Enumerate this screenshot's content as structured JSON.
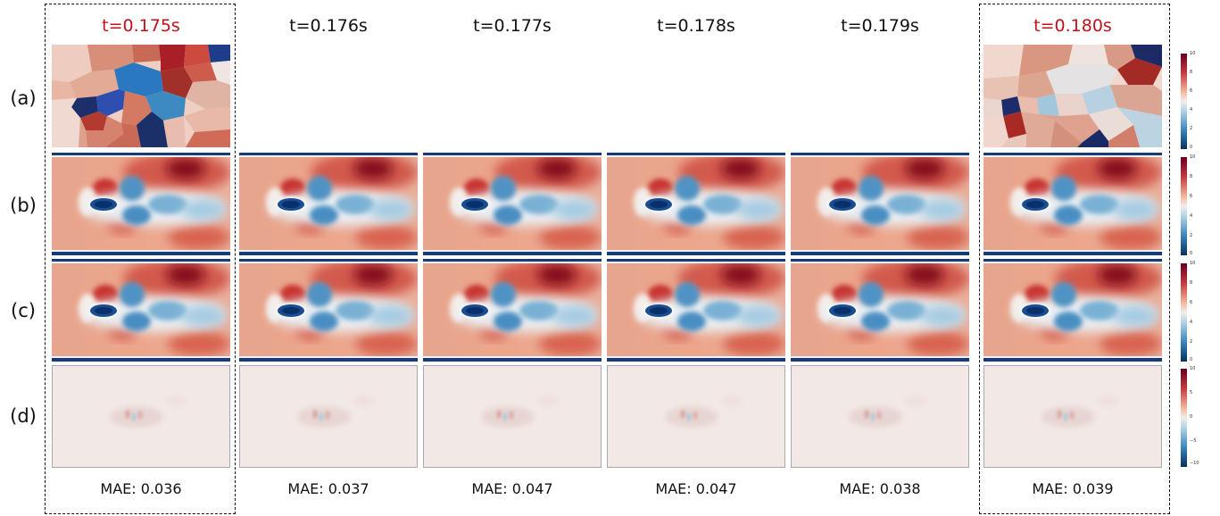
{
  "columns": [
    {
      "time": "t=0.175s",
      "highlighted": true,
      "mae": "MAE: 0.036",
      "has_input": true
    },
    {
      "time": "t=0.176s",
      "highlighted": false,
      "mae": "MAE: 0.037",
      "has_input": false
    },
    {
      "time": "t=0.177s",
      "highlighted": false,
      "mae": "MAE: 0.047",
      "has_input": false
    },
    {
      "time": "t=0.178s",
      "highlighted": false,
      "mae": "MAE: 0.047",
      "has_input": false
    },
    {
      "time": "t=0.179s",
      "highlighted": false,
      "mae": "MAE: 0.038",
      "has_input": false
    },
    {
      "time": "t=0.180s",
      "highlighted": true,
      "mae": "MAE: 0.039",
      "has_input": true
    }
  ],
  "rows": [
    "(a)",
    "(b)",
    "(c)",
    "(d)"
  ],
  "colorbars": [
    {
      "ticks": [
        "10",
        "8",
        "6",
        "4",
        "2",
        "0"
      ]
    },
    {
      "ticks": [
        "10",
        "8",
        "6",
        "4",
        "2",
        "0"
      ]
    },
    {
      "ticks": [
        "10",
        "8",
        "6",
        "4",
        "2",
        "0"
      ]
    },
    {
      "ticks": [
        "10",
        "5",
        "0",
        "−5",
        "−10"
      ]
    }
  ],
  "colors": {
    "highlight": "#c3111a",
    "dark_red": "#67001f",
    "red": "#b2182b",
    "light_red": "#e8a48c",
    "neutral": "#f0ebe8",
    "light_blue": "#a9cde3",
    "blue": "#2f79b5",
    "dark_blue": "#053061"
  }
}
